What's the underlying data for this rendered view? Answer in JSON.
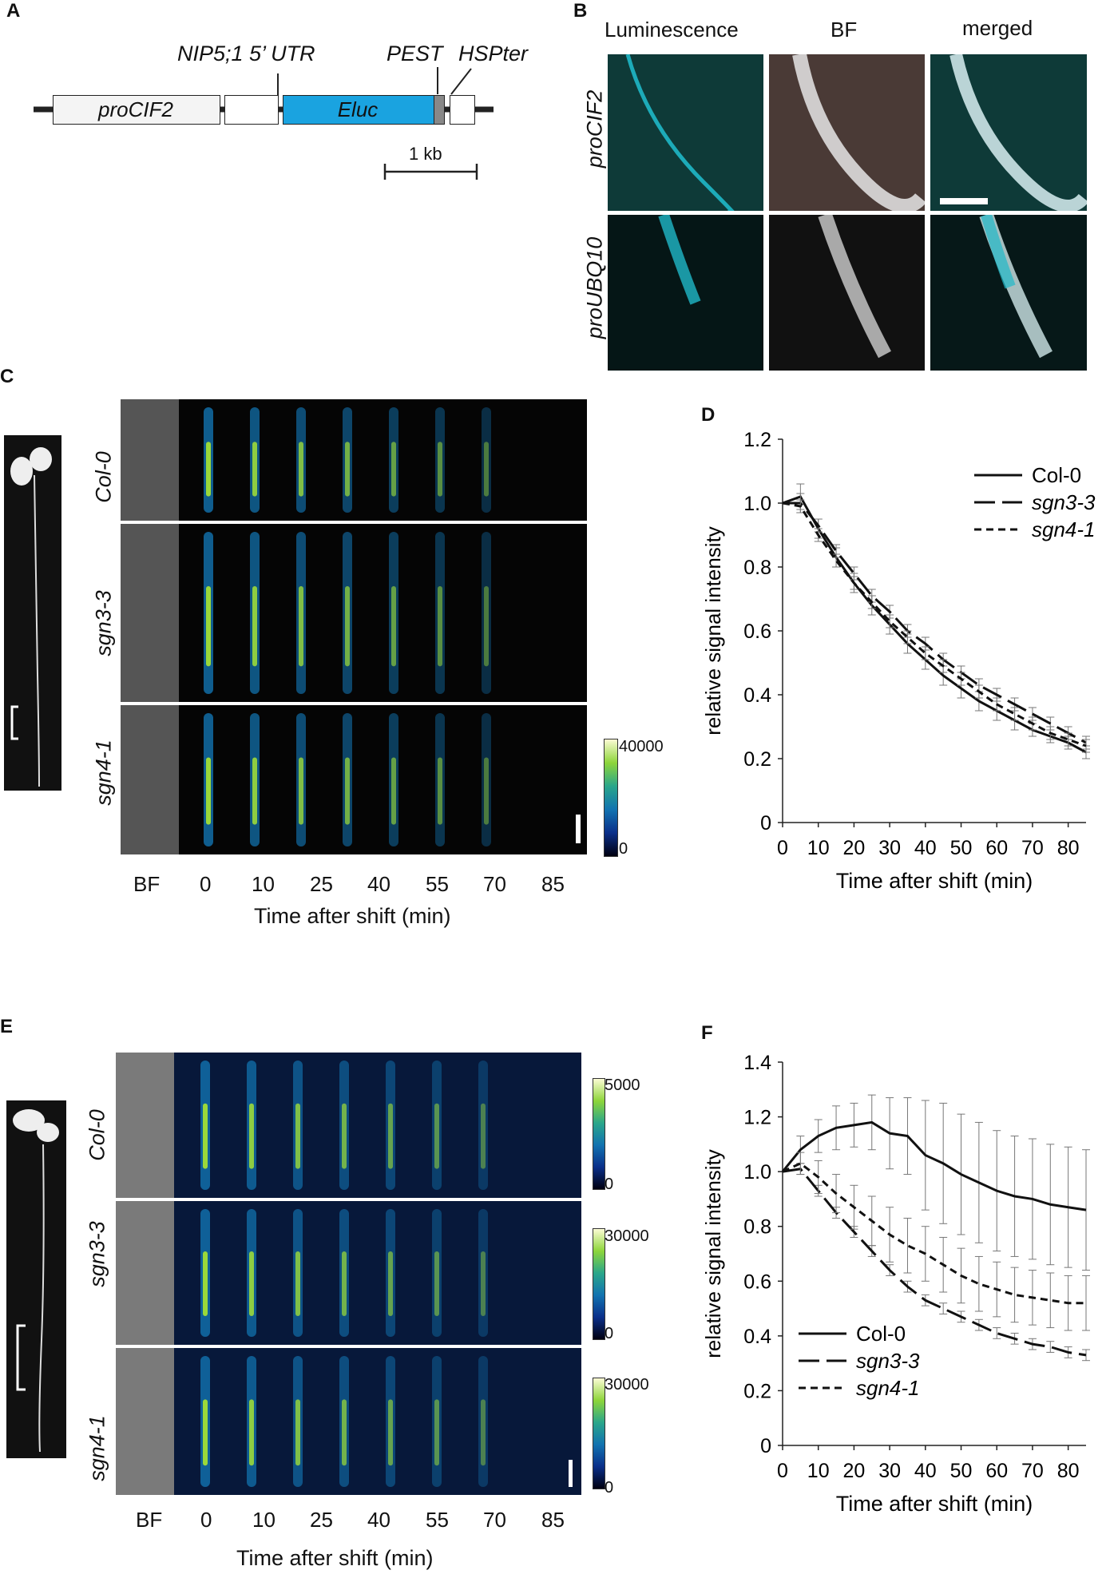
{
  "panels": {
    "A": {
      "letter": "A",
      "construct": {
        "promoter": "proCIF2",
        "utr": "NIP5;1 5’ UTR",
        "reporter": "Eluc",
        "pest": "PEST",
        "terminator": "HSPter",
        "scale_bar": "1 kb"
      },
      "colors": {
        "eluc": "#1aa3e0",
        "pest": "#888888"
      }
    },
    "B": {
      "letter": "B",
      "columns": [
        "Luminescence",
        "BF",
        "merged"
      ],
      "rows": [
        "proCIF2",
        "proUBQ10"
      ],
      "colors": {
        "luminescence": "#1fb8c8"
      }
    },
    "C": {
      "letter": "C",
      "rows": [
        "Col-0",
        "sgn3-3",
        "sgn4-1"
      ],
      "x_labels": [
        "BF",
        "0",
        "10",
        "25",
        "40",
        "55",
        "70",
        "85"
      ],
      "xlabel": "Time after shift (min)",
      "colorbar": {
        "max": "40000",
        "min": "0"
      }
    },
    "D": {
      "letter": "D"
    },
    "E": {
      "letter": "E",
      "rows": [
        "Col-0",
        "sgn3-3",
        "sgn4-1"
      ],
      "x_labels": [
        "BF",
        "0",
        "10",
        "25",
        "40",
        "55",
        "70",
        "85"
      ],
      "xlabel": "Time after shift (min)",
      "colorbars": [
        {
          "max": "5000",
          "min": "0"
        },
        {
          "max": "30000",
          "min": "0"
        },
        {
          "max": "30000",
          "min": "0"
        }
      ]
    },
    "F": {
      "letter": "F"
    }
  },
  "chart_data": [
    {
      "panel": "D",
      "type": "line",
      "title": "",
      "xlabel": "Time after shift (min)",
      "ylabel": "relative signal intensity",
      "xlim": [
        0,
        85
      ],
      "ylim": [
        0,
        1.2
      ],
      "xticks": [
        0,
        10,
        20,
        30,
        40,
        50,
        60,
        70,
        80
      ],
      "yticks": [
        0,
        0.2,
        0.4,
        0.6,
        0.8,
        1.0,
        1.2
      ],
      "ytick_labels": [
        "0",
        "0.2",
        "0.4",
        "0.6",
        "0.8",
        "1.0",
        "1.2"
      ],
      "legend_position": "top-right",
      "x": [
        0,
        5,
        10,
        15,
        20,
        25,
        30,
        35,
        40,
        45,
        50,
        55,
        60,
        65,
        70,
        75,
        80,
        85
      ],
      "series": [
        {
          "name": "Col-0",
          "style": "solid",
          "values": [
            1.0,
            1.02,
            0.92,
            0.83,
            0.75,
            0.68,
            0.62,
            0.56,
            0.51,
            0.46,
            0.42,
            0.38,
            0.35,
            0.32,
            0.29,
            0.27,
            0.25,
            0.22
          ],
          "errors": [
            0,
            0.04,
            0.03,
            0.03,
            0.03,
            0.03,
            0.03,
            0.03,
            0.03,
            0.03,
            0.03,
            0.03,
            0.03,
            0.03,
            0.02,
            0.02,
            0.02,
            0.02
          ]
        },
        {
          "name": "sgn3-3",
          "style": "longdash",
          "values": [
            1.0,
            1.0,
            0.93,
            0.85,
            0.78,
            0.71,
            0.66,
            0.6,
            0.56,
            0.51,
            0.47,
            0.43,
            0.4,
            0.37,
            0.34,
            0.31,
            0.28,
            0.25
          ],
          "errors": [
            0,
            0.03,
            0.02,
            0.02,
            0.02,
            0.02,
            0.02,
            0.02,
            0.02,
            0.02,
            0.02,
            0.02,
            0.02,
            0.02,
            0.02,
            0.02,
            0.02,
            0.02
          ]
        },
        {
          "name": "sgn4-1",
          "style": "shortdash",
          "values": [
            1.0,
            0.99,
            0.9,
            0.82,
            0.75,
            0.69,
            0.63,
            0.58,
            0.53,
            0.49,
            0.45,
            0.41,
            0.37,
            0.34,
            0.31,
            0.28,
            0.26,
            0.24
          ],
          "errors": [
            0,
            0.02,
            0.02,
            0.02,
            0.02,
            0.02,
            0.02,
            0.02,
            0.02,
            0.02,
            0.02,
            0.02,
            0.02,
            0.02,
            0.02,
            0.02,
            0.02,
            0.02
          ]
        }
      ]
    },
    {
      "panel": "F",
      "type": "line",
      "title": "",
      "xlabel": "Time after shift (min)",
      "ylabel": "relative signal intensity",
      "xlim": [
        0,
        85
      ],
      "ylim": [
        0,
        1.4
      ],
      "xticks": [
        0,
        10,
        20,
        30,
        40,
        50,
        60,
        70,
        80
      ],
      "yticks": [
        0,
        0.2,
        0.4,
        0.6,
        0.8,
        1.0,
        1.2,
        1.4
      ],
      "ytick_labels": [
        "0",
        "0.2",
        "0.4",
        "0.6",
        "0.8",
        "1.0",
        "1.2",
        "1.4"
      ],
      "legend_position": "bottom-left",
      "x": [
        0,
        5,
        10,
        15,
        20,
        25,
        30,
        35,
        40,
        45,
        50,
        55,
        60,
        65,
        70,
        75,
        80,
        85
      ],
      "series": [
        {
          "name": "Col-0",
          "style": "solid",
          "values": [
            1.0,
            1.08,
            1.13,
            1.16,
            1.17,
            1.18,
            1.14,
            1.13,
            1.06,
            1.03,
            0.99,
            0.96,
            0.93,
            0.91,
            0.9,
            0.88,
            0.87,
            0.86
          ],
          "errors": [
            0,
            0.05,
            0.06,
            0.08,
            0.08,
            0.1,
            0.13,
            0.14,
            0.2,
            0.22,
            0.22,
            0.22,
            0.22,
            0.22,
            0.22,
            0.22,
            0.22,
            0.22
          ]
        },
        {
          "name": "sgn3-3",
          "style": "longdash",
          "values": [
            1.0,
            1.01,
            0.93,
            0.85,
            0.78,
            0.71,
            0.64,
            0.58,
            0.53,
            0.5,
            0.47,
            0.44,
            0.41,
            0.39,
            0.37,
            0.36,
            0.34,
            0.33
          ],
          "errors": [
            0,
            0.02,
            0.02,
            0.02,
            0.02,
            0.02,
            0.02,
            0.02,
            0.02,
            0.02,
            0.02,
            0.02,
            0.02,
            0.02,
            0.02,
            0.02,
            0.02,
            0.02
          ]
        },
        {
          "name": "sgn4-1",
          "style": "shortdash",
          "values": [
            1.0,
            1.03,
            0.98,
            0.92,
            0.87,
            0.82,
            0.77,
            0.73,
            0.7,
            0.66,
            0.62,
            0.59,
            0.57,
            0.55,
            0.54,
            0.53,
            0.52,
            0.52
          ],
          "errors": [
            0,
            0.04,
            0.06,
            0.07,
            0.08,
            0.09,
            0.1,
            0.1,
            0.1,
            0.1,
            0.1,
            0.1,
            0.1,
            0.1,
            0.1,
            0.1,
            0.1,
            0.1
          ]
        }
      ]
    }
  ]
}
